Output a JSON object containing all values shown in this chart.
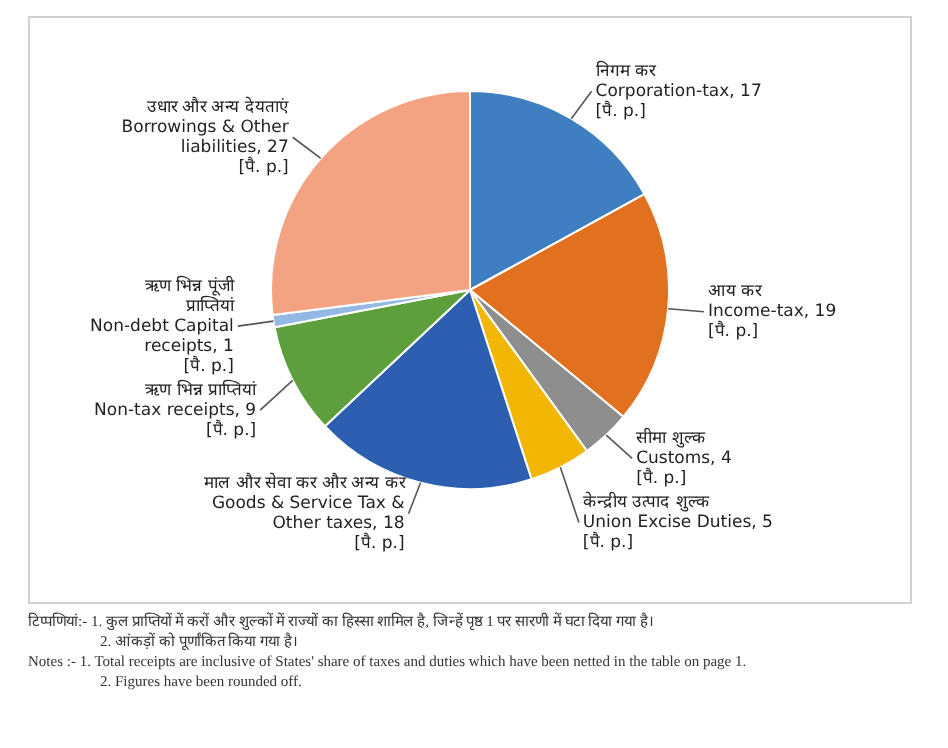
{
  "chart_data": {
    "type": "pie",
    "categories": [
      "निगम कर",
      "आय कर",
      "सीमा शुल्क",
      "केन्द्रीय उत्पाद शुल्क",
      "माल और सेवा कर और अन्य कर",
      "ऋण भिन्न प्राप्तियां",
      "ऋण भिन्न पूंजी\nप्राप्तियां",
      "उधार और अन्य देयताएं"
    ],
    "values": [
      17,
      19,
      4,
      5,
      18,
      9,
      1,
      27
    ],
    "value_labels": [
      "Corporation-tax, 17",
      "Income-tax, 19",
      "Customs, 4",
      "Union Excise Duties, 5",
      "Goods & Service Tax &\nOther taxes, 18",
      "Non-tax receipts, 9",
      "Non-debt Capital\nreceipts, 1",
      "Borrowings & Other\nliabilities, 27"
    ],
    "colors": [
      "#3f7fc1",
      "#e1701f",
      "#8e8e8e",
      "#f2b705",
      "#2d5fb0",
      "#5c9f3c",
      "#94b8e4",
      "#f3a382"
    ],
    "legend": false,
    "annotations": [
      {
        "text": "[पै. p.]",
        "x": "निगम कर"
      },
      {
        "text": "[पै. p.]",
        "x": "आय कर"
      },
      {
        "text": "[पै. p.]",
        "x": "सीमा शुल्क"
      },
      {
        "text": "[पै. p.]",
        "x": "केन्द्रीय उत्पाद शुल्क"
      },
      {
        "text": "[पै. p.]",
        "x": "माल और सेवा कर और अन्य कर"
      },
      {
        "text": "[पै. p.]",
        "x": "ऋण भिन्न प्राप्तियां"
      },
      {
        "text": "[पै. p.]",
        "x": "ऋण भिन्न पूंजी\nप्राप्तियां"
      },
      {
        "text": "[पै. p.]",
        "x": "उधार और अन्य देयताएं"
      },
      "टिप्पणियां:- 1. कुल प्राप्तियों में करों और शुल्कों में राज्यों का हिस्सा शामिल है, जिन्हें पृष्ठ 1 पर सारणी में घटा दिया गया है।",
      "2. आंकड़ों को पूर्णांकित किया गया है।",
      "Notes :- 1. Total receipts are inclusive of States' share of taxes and duties which have been netted in the table on page 1.",
      "2. Figures have been rounded off."
    ]
  }
}
